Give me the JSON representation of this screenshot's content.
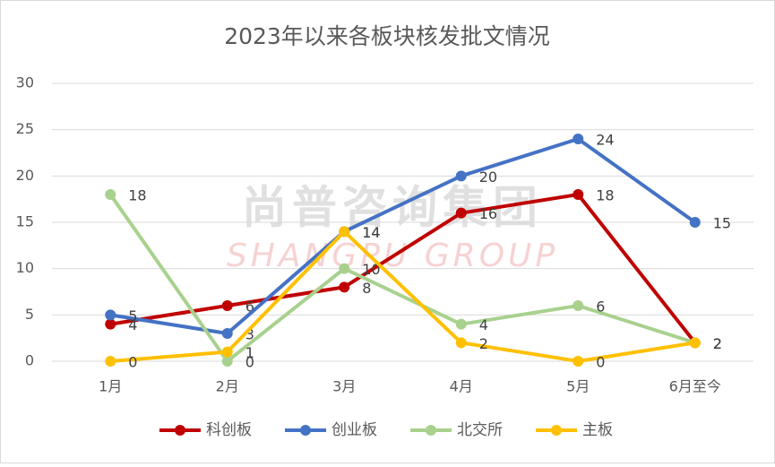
{
  "chart_data": {
    "type": "line",
    "title": "2023年以来各板块核发批文情况",
    "watermark": "尚普咨询集团",
    "watermark_sub": "SHANGPU GROUP",
    "categories": [
      "1月",
      "2月",
      "3月",
      "4月",
      "5月",
      "6月至今"
    ],
    "series": [
      {
        "name": "科创板",
        "color": "#c00000",
        "values": [
          4,
          6,
          8,
          16,
          18,
          2
        ]
      },
      {
        "name": "创业板",
        "color": "#4472c4",
        "values": [
          5,
          3,
          14,
          20,
          24,
          15
        ]
      },
      {
        "name": "北交所",
        "color": "#a9d18e",
        "values": [
          18,
          0,
          10,
          4,
          6,
          2
        ]
      },
      {
        "name": "主板",
        "color": "#ffc000",
        "values": [
          0,
          1,
          14,
          2,
          0,
          2
        ]
      }
    ],
    "ylim": [
      0,
      30
    ],
    "yticks": [
      0,
      5,
      10,
      15,
      20,
      25,
      30
    ],
    "grid": true,
    "legend": "bottom"
  }
}
